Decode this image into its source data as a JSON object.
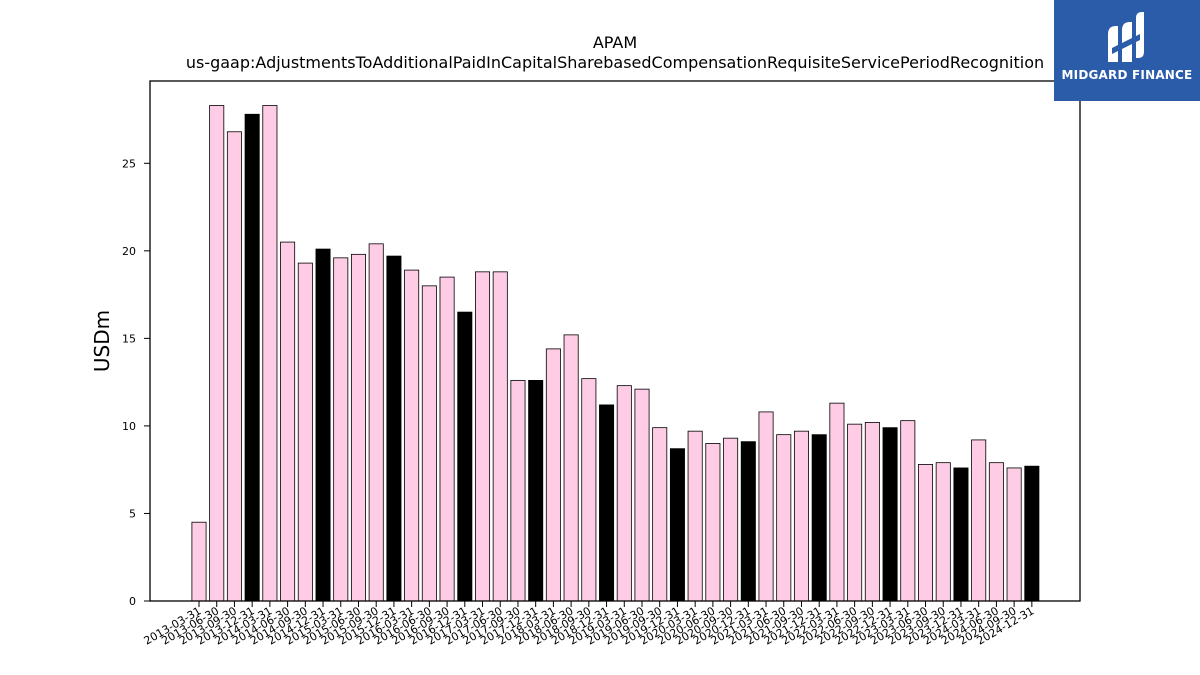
{
  "chart_data": {
    "type": "bar",
    "title": "APAM",
    "subtitle": "us-gaap:AdjustmentsToAdditionalPaidInCapitalSharebasedCompensationRequisiteServicePeriodRecognition",
    "xlabel": "",
    "ylabel": "USDm",
    "ylim": [
      0,
      29.7
    ],
    "yticks": [
      0,
      5,
      10,
      15,
      20,
      25
    ],
    "grid": false,
    "colors": {
      "quarter": "#ffcce6",
      "year_end": "#000000",
      "edge": "#000000"
    },
    "categories": [
      "2013-03-31",
      "2013-06-30",
      "2013-09-30",
      "2013-12-31",
      "2014-03-31",
      "2014-06-30",
      "2014-09-30",
      "2014-12-31",
      "2015-03-31",
      "2015-06-30",
      "2015-09-30",
      "2015-12-31",
      "2016-03-31",
      "2016-06-30",
      "2016-09-30",
      "2016-12-31",
      "2017-03-31",
      "2017-06-30",
      "2017-09-30",
      "2017-12-31",
      "2018-03-31",
      "2018-06-30",
      "2018-09-30",
      "2018-12-31",
      "2019-03-31",
      "2019-06-30",
      "2019-09-30",
      "2019-12-31",
      "2020-03-31",
      "2020-06-30",
      "2020-09-30",
      "2020-12-31",
      "2021-03-31",
      "2021-06-30",
      "2021-09-30",
      "2021-12-31",
      "2022-03-31",
      "2022-06-30",
      "2022-09-30",
      "2022-12-31",
      "2023-03-31",
      "2023-06-30",
      "2023-09-30",
      "2023-12-31",
      "2024-03-31",
      "2024-06-30",
      "2024-09-30",
      "2024-12-31"
    ],
    "values": [
      4.5,
      28.3,
      26.8,
      27.8,
      28.3,
      20.5,
      19.3,
      20.1,
      19.6,
      19.8,
      20.4,
      19.7,
      18.9,
      18.0,
      18.5,
      16.5,
      18.8,
      18.8,
      12.6,
      12.6,
      14.4,
      15.2,
      12.7,
      11.2,
      12.3,
      12.1,
      9.9,
      8.7,
      9.7,
      9.0,
      9.3,
      9.1,
      10.8,
      9.5,
      9.7,
      9.5,
      11.3,
      10.1,
      10.2,
      9.9,
      10.3,
      7.8,
      7.9,
      7.6,
      9.2,
      7.9,
      7.6,
      7.7
    ]
  },
  "logo": {
    "name": "MIDGARD FINANCE"
  }
}
